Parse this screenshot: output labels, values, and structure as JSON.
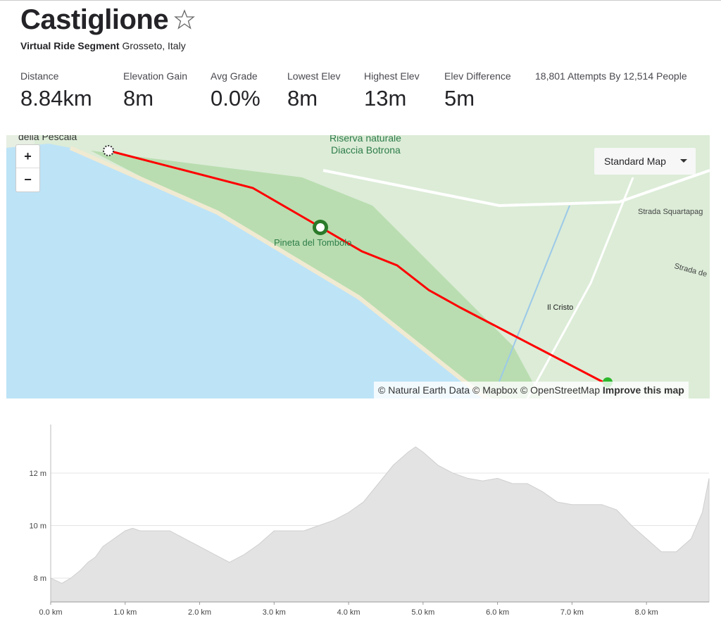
{
  "header": {
    "title": "Castiglione",
    "segment_type": "Virtual Ride Segment",
    "location": "Grosseto, Italy"
  },
  "stats": [
    {
      "label": "Distance",
      "value": "8.84km"
    },
    {
      "label": "Elevation Gain",
      "value": "8m"
    },
    {
      "label": "Avg Grade",
      "value": "0.0%"
    },
    {
      "label": "Lowest Elev",
      "value": "8m"
    },
    {
      "label": "Highest Elev",
      "value": "13m"
    },
    {
      "label": "Elev Difference",
      "value": "5m"
    }
  ],
  "attempts": "18,801 Attempts By 12,514 People",
  "map": {
    "style_button": "Standard Map",
    "zoom_in": "+",
    "zoom_out": "−",
    "labels": [
      "della Pescaia",
      "Riserva naturale",
      "Diaccia Botrona",
      "Pineta del Tombolo",
      "Strada Squartapag",
      "Strada de",
      "Il Cristo"
    ],
    "attribution": "© Natural Earth Data © Mapbox © OpenStreetMap",
    "improve": "Improve this map"
  },
  "elevation_chart": {
    "type": "area",
    "color": "#e3e3e3",
    "x": [
      0,
      0.15,
      0.27,
      0.4,
      0.5,
      0.6,
      0.7,
      0.8,
      0.9,
      1.0,
      1.1,
      1.2,
      1.4,
      1.6,
      1.8,
      2.0,
      2.2,
      2.4,
      2.6,
      2.8,
      3.0,
      3.2,
      3.4,
      3.6,
      3.8,
      4.0,
      4.2,
      4.4,
      4.6,
      4.8,
      4.9,
      5.0,
      5.2,
      5.4,
      5.6,
      5.8,
      6.0,
      6.2,
      6.4,
      6.6,
      6.8,
      7.0,
      7.2,
      7.4,
      7.6,
      7.8,
      8.0,
      8.2,
      8.4,
      8.6,
      8.75,
      8.84
    ],
    "values": [
      8.0,
      7.8,
      8.0,
      8.3,
      8.6,
      8.8,
      9.2,
      9.4,
      9.6,
      9.8,
      9.9,
      9.8,
      9.8,
      9.8,
      9.5,
      9.2,
      8.9,
      8.6,
      8.9,
      9.3,
      9.8,
      9.8,
      9.8,
      10.0,
      10.2,
      10.5,
      10.9,
      11.6,
      12.3,
      12.8,
      13.0,
      12.8,
      12.3,
      12.0,
      11.8,
      11.7,
      11.8,
      11.6,
      11.6,
      11.3,
      10.9,
      10.8,
      10.8,
      10.8,
      10.6,
      10.0,
      9.5,
      9.0,
      9.0,
      9.5,
      10.5,
      11.8
    ],
    "xlim": [
      0,
      8.84
    ],
    "ylim": [
      7.09,
      13.85
    ],
    "xticks": [
      {
        "value": 0,
        "label": "0.0 km"
      },
      {
        "value": 1,
        "label": "1.0 km"
      },
      {
        "value": 2,
        "label": "2.0 km"
      },
      {
        "value": 3,
        "label": "3.0 km"
      },
      {
        "value": 4,
        "label": "4.0 km"
      },
      {
        "value": 5,
        "label": "5.0 km"
      },
      {
        "value": 6,
        "label": "6.0 km"
      },
      {
        "value": 7,
        "label": "7.0 km"
      },
      {
        "value": 8,
        "label": "8.0 km"
      }
    ],
    "yticks": [
      {
        "value": 8,
        "label": "8 m"
      },
      {
        "value": 10,
        "label": "10 m"
      },
      {
        "value": 12,
        "label": "12 m"
      }
    ],
    "grid": true
  }
}
